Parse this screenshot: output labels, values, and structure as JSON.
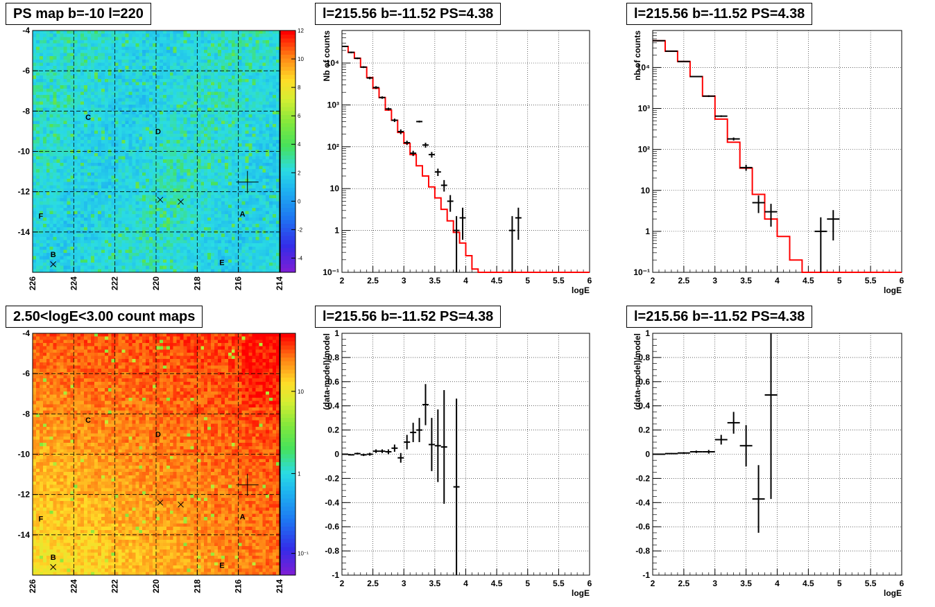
{
  "panels": {
    "ps_map": {
      "title": "PS map b=-10 l=220"
    },
    "count_map": {
      "title": "2.50<logE<3.00 count maps"
    },
    "spec_left": {
      "title": "l=215.56 b=-11.52 PS=4.38"
    },
    "spec_right": {
      "title": "l=215.56 b=-11.52 PS=4.38"
    },
    "resid_left": {
      "title": "l=215.56 b=-11.52 PS=4.38"
    },
    "resid_right": {
      "title": "l=215.56 b=-11.52 PS=4.38"
    }
  },
  "colors": {
    "model": "#ff0000",
    "data": "#000000",
    "map_low": "#7a1fd6",
    "map_high": "#ff0000"
  },
  "chart_data": [
    {
      "id": "ps_map",
      "type": "heatmap",
      "title": "PS map b=-10 l=220",
      "xlim": [
        226,
        214
      ],
      "ylim": [
        -16,
        -4
      ],
      "x_ticks": [
        "226",
        "224",
        "222",
        "220",
        "218",
        "216",
        "214"
      ],
      "y_ticks": [
        "-4",
        "-6",
        "-8",
        "-10",
        "-12",
        "-14"
      ],
      "colorbar": {
        "min": -5,
        "max": 12,
        "ticks": [
          "12",
          "10",
          "8",
          "6",
          "4",
          "2",
          "0",
          "-2",
          "-4"
        ],
        "scale": "linear"
      },
      "grid": true,
      "sources": [
        {
          "label": "A",
          "l": 215.8,
          "b": -13.1
        },
        {
          "label": "B",
          "l": 225.0,
          "b": -15.1
        },
        {
          "label": "C",
          "l": 223.3,
          "b": -8.3
        },
        {
          "label": "D",
          "l": 219.9,
          "b": -9.0
        },
        {
          "label": "E",
          "l": 216.8,
          "b": -15.5
        },
        {
          "label": "F",
          "l": 225.6,
          "b": -13.2
        }
      ],
      "markers_x": [
        {
          "l": 219.8,
          "b": -12.4
        },
        {
          "l": 218.8,
          "b": -12.5
        },
        {
          "l": 225.0,
          "b": -15.6
        }
      ],
      "marker_plus": {
        "l": 215.56,
        "b": -11.52
      }
    },
    {
      "id": "count_map",
      "type": "heatmap",
      "title": "2.50<logE<3.00 count maps",
      "xlim": [
        226,
        214
      ],
      "ylim": [
        -16,
        -4
      ],
      "x_ticks": [
        "226",
        "224",
        "222",
        "220",
        "218",
        "216",
        "214"
      ],
      "y_ticks": [
        "-4",
        "-6",
        "-8",
        "-10",
        "-12",
        "-14"
      ],
      "colorbar": {
        "scale": "log",
        "ticks": [
          "10",
          "1",
          "10⁻¹"
        ]
      },
      "grid": true,
      "sources": [
        {
          "label": "A",
          "l": 215.8,
          "b": -13.1
        },
        {
          "label": "B",
          "l": 225.0,
          "b": -15.1
        },
        {
          "label": "C",
          "l": 223.3,
          "b": -8.3
        },
        {
          "label": "D",
          "l": 219.9,
          "b": -9.0
        },
        {
          "label": "E",
          "l": 216.8,
          "b": -15.5
        },
        {
          "label": "F",
          "l": 225.6,
          "b": -13.2
        }
      ],
      "markers_x": [
        {
          "l": 219.8,
          "b": -12.4
        },
        {
          "l": 218.8,
          "b": -12.5
        },
        {
          "l": 225.0,
          "b": -15.6
        }
      ],
      "marker_plus": {
        "l": 215.56,
        "b": -11.52
      }
    },
    {
      "id": "spec_left",
      "type": "line",
      "title": "l=215.56 b=-11.52 PS=4.38",
      "xlabel": "logE",
      "ylabel": "Nb of counts",
      "xlim": [
        2,
        6
      ],
      "ylim": [
        0.1,
        60000
      ],
      "yscale": "log",
      "x_ticks": [
        "2",
        "2.5",
        "3",
        "3.5",
        "4",
        "4.5",
        "5",
        "5.5",
        "6"
      ],
      "y_ticks": [
        {
          "v": 0.1,
          "t": "10⁻¹"
        },
        {
          "v": 1,
          "t": "1"
        },
        {
          "v": 10,
          "t": "10"
        },
        {
          "v": 100,
          "t": "10²"
        },
        {
          "v": 1000,
          "t": "10³"
        },
        {
          "v": 10000,
          "t": "10⁴"
        }
      ],
      "grid": true,
      "model_bin_width": 0.1,
      "model_x": [
        2.0,
        2.1,
        2.2,
        2.3,
        2.4,
        2.5,
        2.6,
        2.7,
        2.8,
        2.9,
        3.0,
        3.1,
        3.2,
        3.3,
        3.4,
        3.5,
        3.6,
        3.7,
        3.8,
        3.9,
        4.0,
        4.1,
        4.2,
        4.3,
        4.4,
        4.5,
        4.6,
        4.7,
        4.8,
        4.9,
        5.0,
        5.1,
        5.2,
        5.3,
        5.4,
        5.5,
        5.6,
        5.7,
        5.8,
        5.9
      ],
      "model": [
        25000,
        18000,
        13000,
        8000,
        4500,
        2500,
        1500,
        750,
        430,
        220,
        120,
        65,
        35,
        20,
        11,
        6,
        3.2,
        1.7,
        0.9,
        0.5,
        0.25,
        0.12,
        0.1,
        0.1,
        0.1,
        0.1,
        0.1,
        0.1,
        0.1,
        0.1,
        0.1,
        0.1,
        0.1,
        0.1,
        0.1,
        0.1,
        0.1,
        0.1,
        0.1,
        0.1
      ],
      "points": [
        {
          "x": 2.05,
          "y": 25000,
          "lo": 24000,
          "hi": 26000
        },
        {
          "x": 2.15,
          "y": 18000,
          "lo": 17200,
          "hi": 18800
        },
        {
          "x": 2.25,
          "y": 13000,
          "lo": 12400,
          "hi": 13600
        },
        {
          "x": 2.35,
          "y": 8000,
          "lo": 7600,
          "hi": 8400
        },
        {
          "x": 2.45,
          "y": 4400,
          "lo": 4100,
          "hi": 4700
        },
        {
          "x": 2.55,
          "y": 2600,
          "lo": 2400,
          "hi": 2800
        },
        {
          "x": 2.65,
          "y": 1500,
          "lo": 1400,
          "hi": 1600
        },
        {
          "x": 2.75,
          "y": 800,
          "lo": 740,
          "hi": 860
        },
        {
          "x": 2.85,
          "y": 430,
          "lo": 390,
          "hi": 470
        },
        {
          "x": 2.95,
          "y": 230,
          "lo": 200,
          "hi": 260
        },
        {
          "x": 3.05,
          "y": 125,
          "lo": 110,
          "hi": 140
        },
        {
          "x": 3.15,
          "y": 70,
          "lo": 60,
          "hi": 80
        },
        {
          "x": 3.25,
          "y": 400,
          "lo": 380,
          "hi": 420
        },
        {
          "x": 3.35,
          "y": 110,
          "lo": 95,
          "hi": 125
        },
        {
          "x": 3.45,
          "y": 65,
          "lo": 55,
          "hi": 75
        },
        {
          "x": 3.55,
          "y": 25,
          "lo": 20,
          "hi": 30
        },
        {
          "x": 3.65,
          "y": 12,
          "lo": 8.5,
          "hi": 16
        },
        {
          "x": 3.75,
          "y": 5,
          "lo": 2.8,
          "hi": 7
        },
        {
          "x": 3.85,
          "y": 1,
          "lo": 0.1,
          "hi": 2.2
        },
        {
          "x": 3.95,
          "y": 2,
          "lo": 0.6,
          "hi": 3.5
        },
        {
          "x": 4.75,
          "y": 1,
          "lo": 0.1,
          "hi": 2.2
        },
        {
          "x": 4.85,
          "y": 2,
          "lo": 0.6,
          "hi": 3.5
        }
      ]
    },
    {
      "id": "spec_right",
      "type": "line",
      "title": "l=215.56 b=-11.52 PS=4.38",
      "xlabel": "logE",
      "ylabel": "nb of counts",
      "xlim": [
        2,
        6
      ],
      "ylim": [
        0.1,
        80000
      ],
      "yscale": "log",
      "x_ticks": [
        "2",
        "2.5",
        "3",
        "3.5",
        "4",
        "4.5",
        "5",
        "5.5",
        "6"
      ],
      "y_ticks": [
        {
          "v": 0.1,
          "t": "10⁻¹"
        },
        {
          "v": 1,
          "t": "1"
        },
        {
          "v": 10,
          "t": "10"
        },
        {
          "v": 100,
          "t": "10²"
        },
        {
          "v": 1000,
          "t": "10³"
        },
        {
          "v": 10000,
          "t": "10⁴"
        }
      ],
      "grid": true,
      "model_bin_width": 0.2,
      "model_x": [
        2.0,
        2.2,
        2.4,
        2.6,
        2.8,
        3.0,
        3.2,
        3.4,
        3.6,
        3.8,
        4.0,
        4.2,
        4.4,
        4.6,
        4.8,
        5.0,
        5.2,
        5.4,
        5.6,
        5.8
      ],
      "model": [
        45000,
        25000,
        14000,
        6000,
        2000,
        550,
        150,
        35,
        8,
        2,
        0.75,
        0.2,
        0.1,
        0.1,
        0.1,
        0.1,
        0.1,
        0.1,
        0.1,
        0.1
      ],
      "points": [
        {
          "x": 2.1,
          "y": 45000,
          "lo": 44000,
          "hi": 46000
        },
        {
          "x": 2.3,
          "y": 25000,
          "lo": 24500,
          "hi": 25500
        },
        {
          "x": 2.5,
          "y": 14000,
          "lo": 13600,
          "hi": 14400
        },
        {
          "x": 2.7,
          "y": 6000,
          "lo": 5800,
          "hi": 6200
        },
        {
          "x": 2.9,
          "y": 2000,
          "lo": 1900,
          "hi": 2100
        },
        {
          "x": 3.1,
          "y": 650,
          "lo": 620,
          "hi": 680
        },
        {
          "x": 3.3,
          "y": 180,
          "lo": 165,
          "hi": 195
        },
        {
          "x": 3.5,
          "y": 36,
          "lo": 30,
          "hi": 42
        },
        {
          "x": 3.7,
          "y": 5,
          "lo": 2.8,
          "hi": 7.5
        },
        {
          "x": 3.9,
          "y": 3,
          "lo": 1.3,
          "hi": 4.7
        },
        {
          "x": 4.7,
          "y": 1,
          "lo": 0.1,
          "hi": 2.2
        },
        {
          "x": 4.9,
          "y": 2,
          "lo": 0.6,
          "hi": 3.3
        }
      ]
    },
    {
      "id": "resid_left",
      "type": "scatter",
      "title": "l=215.56 b=-11.52 PS=4.38",
      "xlabel": "logE",
      "ylabel": "(data-model)/model",
      "xlim": [
        2,
        6
      ],
      "ylim": [
        -1,
        1
      ],
      "x_ticks": [
        "2",
        "2.5",
        "3",
        "3.5",
        "4",
        "4.5",
        "5",
        "5.5",
        "6"
      ],
      "y_ticks": [
        "1",
        "0.8",
        "0.6",
        "0.4",
        "0.2",
        "0",
        "-0.2",
        "-0.4",
        "-0.6",
        "-0.8",
        "-1"
      ],
      "grid": true,
      "x_halfwidth": 0.05,
      "points": [
        {
          "x": 2.05,
          "y": 0.0,
          "err": 0.005
        },
        {
          "x": 2.15,
          "y": -0.005,
          "err": 0.005
        },
        {
          "x": 2.25,
          "y": 0.005,
          "err": 0.008
        },
        {
          "x": 2.35,
          "y": -0.005,
          "err": 0.01
        },
        {
          "x": 2.45,
          "y": 0.0,
          "err": 0.012
        },
        {
          "x": 2.55,
          "y": 0.025,
          "err": 0.015
        },
        {
          "x": 2.65,
          "y": 0.025,
          "err": 0.015
        },
        {
          "x": 2.75,
          "y": 0.02,
          "err": 0.02
        },
        {
          "x": 2.85,
          "y": 0.05,
          "err": 0.03
        },
        {
          "x": 2.95,
          "y": -0.03,
          "err": 0.04
        },
        {
          "x": 3.05,
          "y": 0.1,
          "err": 0.06
        },
        {
          "x": 3.15,
          "y": 0.18,
          "err": 0.08
        },
        {
          "x": 3.25,
          "y": 0.2,
          "err": 0.1
        },
        {
          "x": 3.35,
          "y": 0.41,
          "err": 0.17
        },
        {
          "x": 3.45,
          "y": 0.08,
          "err": 0.22
        },
        {
          "x": 3.55,
          "y": 0.07,
          "err": 0.3
        },
        {
          "x": 3.65,
          "y": 0.06,
          "err": 0.47
        },
        {
          "x": 3.85,
          "y": -0.27,
          "err": 0.73
        }
      ]
    },
    {
      "id": "resid_right",
      "type": "scatter",
      "title": "l=215.56 b=-11.52 PS=4.38",
      "xlabel": "logE",
      "ylabel": "(data-model)/model",
      "xlim": [
        2,
        6
      ],
      "ylim": [
        -1,
        1
      ],
      "x_ticks": [
        "2",
        "2.5",
        "3",
        "3.5",
        "4",
        "4.5",
        "5",
        "5.5",
        "6"
      ],
      "y_ticks": [
        "1",
        "0.8",
        "0.6",
        "0.4",
        "0.2",
        "0",
        "-0.2",
        "-0.4",
        "-0.6",
        "-0.8",
        "-1"
      ],
      "grid": true,
      "x_halfwidth": 0.1,
      "points": [
        {
          "x": 2.1,
          "y": 0.0,
          "err": 0.004
        },
        {
          "x": 2.3,
          "y": 0.005,
          "err": 0.005
        },
        {
          "x": 2.5,
          "y": 0.01,
          "err": 0.006
        },
        {
          "x": 2.7,
          "y": 0.02,
          "err": 0.01
        },
        {
          "x": 2.9,
          "y": 0.02,
          "err": 0.015
        },
        {
          "x": 3.1,
          "y": 0.12,
          "err": 0.04
        },
        {
          "x": 3.3,
          "y": 0.26,
          "err": 0.09
        },
        {
          "x": 3.5,
          "y": 0.07,
          "err": 0.17
        },
        {
          "x": 3.7,
          "y": -0.37,
          "err": 0.28
        },
        {
          "x": 3.9,
          "y": 0.49,
          "err": 0.86
        }
      ]
    }
  ]
}
